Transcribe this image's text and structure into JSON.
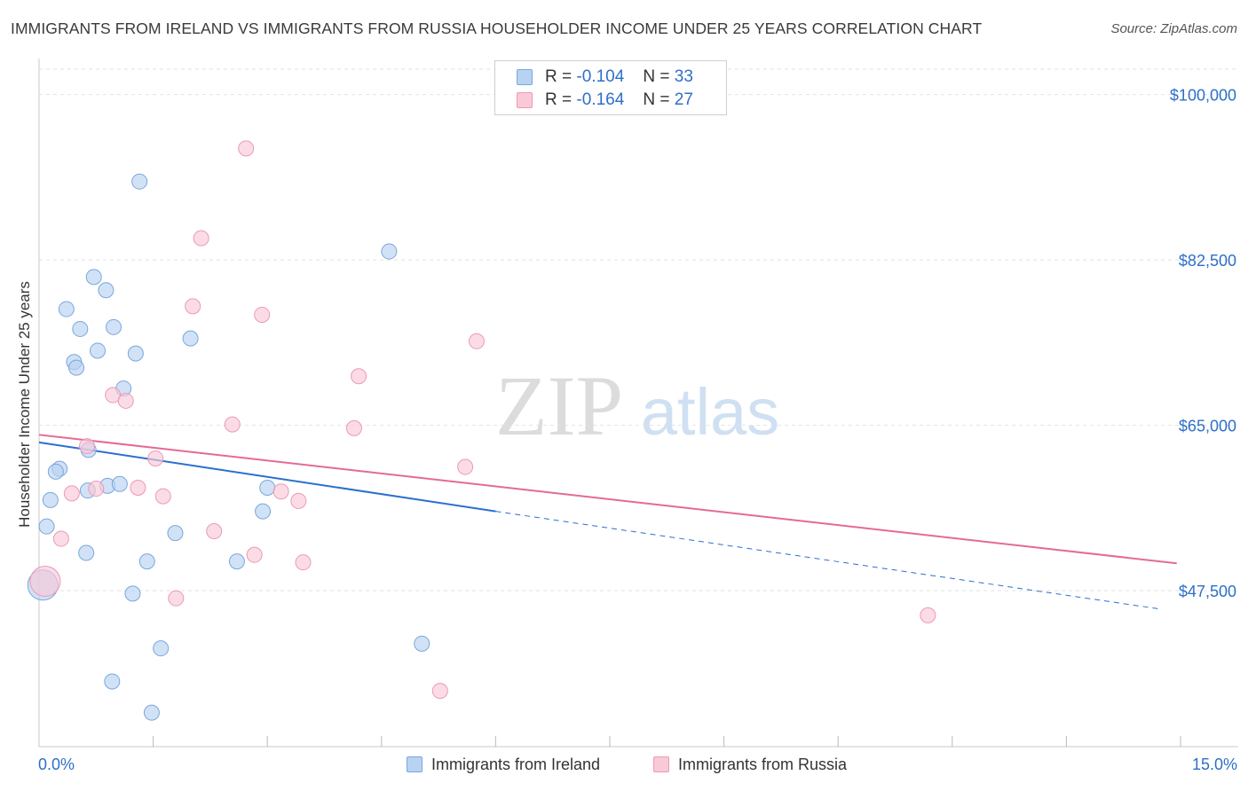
{
  "title": "IMMIGRANTS FROM IRELAND VS IMMIGRANTS FROM RUSSIA HOUSEHOLDER INCOME UNDER 25 YEARS CORRELATION CHART",
  "source": "Source: ZipAtlas.com",
  "watermark": {
    "zip": "ZIP",
    "atlas": "atlas"
  },
  "legend_top": [
    {
      "r_label": "R =",
      "r_value": "-0.104",
      "n_label": "N =",
      "n_value": "33"
    },
    {
      "r_label": "R =",
      "r_value": "-0.164",
      "n_label": "N =",
      "n_value": "27"
    }
  ],
  "colors": {
    "ireland_fill": "#b8d3f2",
    "ireland_stroke": "#7aa7dc",
    "ireland_line": "#2b6fce",
    "russia_fill": "#f9c9d8",
    "russia_stroke": "#eb9ab4",
    "russia_line": "#e46b93",
    "axis_text": "#2e6fc7"
  },
  "chart_data": {
    "type": "scatter",
    "title": "IMMIGRANTS FROM IRELAND VS IMMIGRANTS FROM RUSSIA HOUSEHOLDER INCOME UNDER 25 YEARS CORRELATION CHART",
    "xlabel": "",
    "ylabel": "Householder Income Under 25 years",
    "xlim": [
      0,
      15
    ],
    "ylim": [
      31000,
      102500
    ],
    "x_tick_labels": [
      "0.0%",
      "15.0%"
    ],
    "y_ticks": [
      47500,
      65000,
      82500,
      100000
    ],
    "y_tick_labels": [
      "$47,500",
      "$65,000",
      "$82,500",
      "$100,000"
    ],
    "series": [
      {
        "name": "Immigrants from Ireland",
        "points": [
          {
            "x": 1.32,
            "y": 90800
          },
          {
            "x": 4.6,
            "y": 83400
          },
          {
            "x": 0.72,
            "y": 80700
          },
          {
            "x": 0.88,
            "y": 79300
          },
          {
            "x": 0.36,
            "y": 77300
          },
          {
            "x": 0.54,
            "y": 75200
          },
          {
            "x": 0.98,
            "y": 75400
          },
          {
            "x": 1.99,
            "y": 74200
          },
          {
            "x": 0.77,
            "y": 72900
          },
          {
            "x": 1.27,
            "y": 72600
          },
          {
            "x": 0.46,
            "y": 71700
          },
          {
            "x": 0.49,
            "y": 71100
          },
          {
            "x": 1.11,
            "y": 68900
          },
          {
            "x": 0.65,
            "y": 62400
          },
          {
            "x": 0.27,
            "y": 60400
          },
          {
            "x": 0.22,
            "y": 60100
          },
          {
            "x": 0.9,
            "y": 58600
          },
          {
            "x": 1.06,
            "y": 58800
          },
          {
            "x": 3.0,
            "y": 58400
          },
          {
            "x": 0.64,
            "y": 58100
          },
          {
            "x": 0.15,
            "y": 57100
          },
          {
            "x": 2.94,
            "y": 55900
          },
          {
            "x": 0.1,
            "y": 54300
          },
          {
            "x": 1.79,
            "y": 53600
          },
          {
            "x": 0.62,
            "y": 51500
          },
          {
            "x": 1.42,
            "y": 50600
          },
          {
            "x": 2.6,
            "y": 50600
          },
          {
            "x": 1.23,
            "y": 47200
          },
          {
            "x": 0.05,
            "y": 48100,
            "large": true
          },
          {
            "x": 1.6,
            "y": 41400
          },
          {
            "x": 5.03,
            "y": 41900
          },
          {
            "x": 0.96,
            "y": 37900
          },
          {
            "x": 1.48,
            "y": 34600
          }
        ]
      },
      {
        "name": "Immigrants from Russia",
        "points": [
          {
            "x": 2.72,
            "y": 94300
          },
          {
            "x": 2.13,
            "y": 84800
          },
          {
            "x": 2.02,
            "y": 77600
          },
          {
            "x": 2.93,
            "y": 76700
          },
          {
            "x": 5.75,
            "y": 73900
          },
          {
            "x": 4.2,
            "y": 70200
          },
          {
            "x": 0.97,
            "y": 68200
          },
          {
            "x": 1.14,
            "y": 67600
          },
          {
            "x": 2.54,
            "y": 65100
          },
          {
            "x": 4.14,
            "y": 64700
          },
          {
            "x": 0.63,
            "y": 62800
          },
          {
            "x": 1.53,
            "y": 61500
          },
          {
            "x": 5.6,
            "y": 60600
          },
          {
            "x": 0.75,
            "y": 58300
          },
          {
            "x": 1.3,
            "y": 58400
          },
          {
            "x": 0.43,
            "y": 57800
          },
          {
            "x": 3.18,
            "y": 58000
          },
          {
            "x": 1.63,
            "y": 57500
          },
          {
            "x": 3.41,
            "y": 57000
          },
          {
            "x": 2.3,
            "y": 53800
          },
          {
            "x": 0.29,
            "y": 53000
          },
          {
            "x": 2.83,
            "y": 51300
          },
          {
            "x": 3.47,
            "y": 50500
          },
          {
            "x": 1.8,
            "y": 46700
          },
          {
            "x": 11.68,
            "y": 44900
          },
          {
            "x": 5.27,
            "y": 36900
          },
          {
            "x": 0.08,
            "y": 48500,
            "large": true
          }
        ]
      }
    ],
    "trend_lines": [
      {
        "series": "Immigrants from Ireland",
        "x": [
          0,
          6.0
        ],
        "y": [
          63200,
          55900
        ],
        "dashed_to": [
          14.7,
          45600
        ]
      },
      {
        "series": "Immigrants from Russia",
        "x": [
          0,
          14.95
        ],
        "y": [
          64000,
          50400
        ]
      }
    ],
    "grid": true,
    "legend_position": "bottom"
  }
}
